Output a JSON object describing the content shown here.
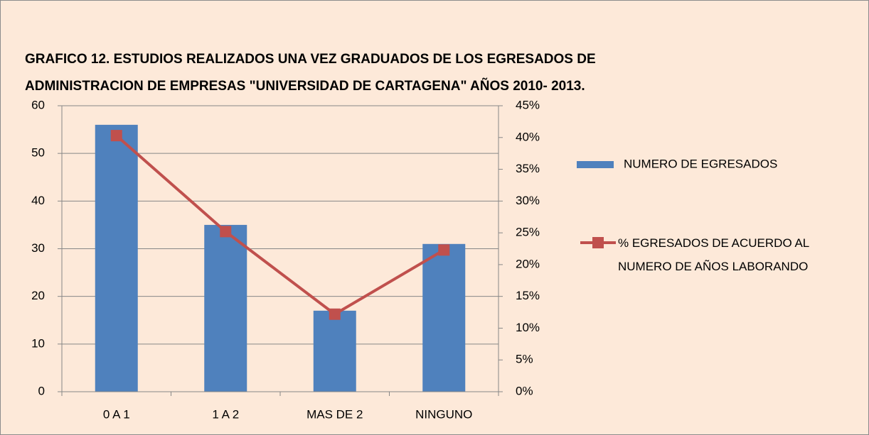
{
  "chart_data": {
    "type": "bar-line",
    "title": "GRAFICO 12. ESTUDIOS REALIZADOS UNA VEZ GRADUADOS DE LOS EGRESADOS DE\nADMINISTRACION DE EMPRESAS \"UNIVERSIDAD DE CARTAGENA\" AÑOS 2010- 2013.",
    "categories": [
      "0 A 1",
      "1 A 2",
      "MAS DE 2",
      "NINGUNO"
    ],
    "series": [
      {
        "name": "NUMERO DE EGRESADOS",
        "type": "bar",
        "color": "#4f81bd",
        "values": [
          56,
          35,
          17,
          31
        ]
      },
      {
        "name": "% EGRESADOS DE ACUERDO AL NUMERO DE AÑOS LABORANDO",
        "type": "line",
        "axis": "y2",
        "color": "#c0504d",
        "values": [
          40.3,
          25.2,
          12.2,
          22.3
        ]
      }
    ],
    "ylim": [
      0,
      60
    ],
    "yticks": [
      0,
      10,
      20,
      30,
      40,
      50,
      60
    ],
    "y2lim": [
      0,
      45
    ],
    "y2ticks": [
      {
        "value": 0,
        "label": "0%"
      },
      {
        "value": 5,
        "label": "5%"
      },
      {
        "value": 10,
        "label": "10%"
      },
      {
        "value": 15,
        "label": "15%"
      },
      {
        "value": 20,
        "label": "20%"
      },
      {
        "value": 25,
        "label": "25%"
      },
      {
        "value": 30,
        "label": "30%"
      },
      {
        "value": 35,
        "label": "35%"
      },
      {
        "value": 40,
        "label": "40%"
      },
      {
        "value": 45,
        "label": "45%"
      }
    ],
    "grid": true,
    "legend": "right"
  }
}
